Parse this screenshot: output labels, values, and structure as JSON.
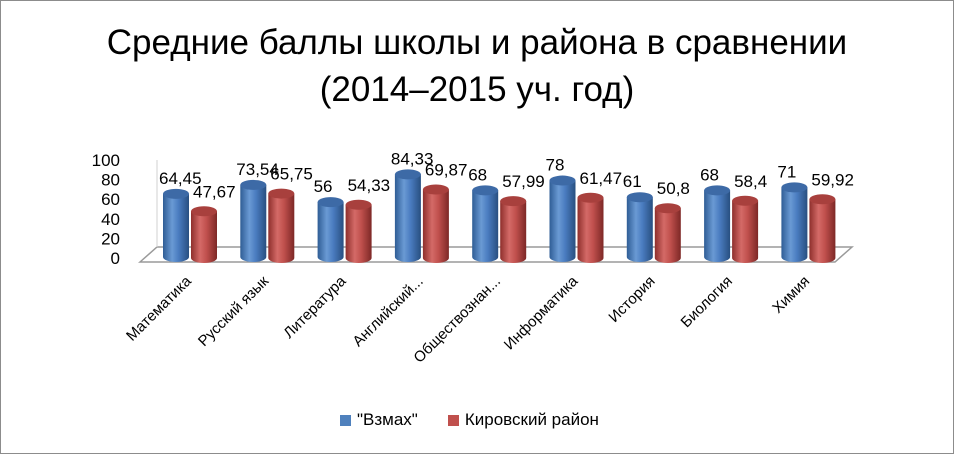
{
  "chart_data": {
    "type": "bar",
    "style": "3d-cylinder",
    "title": "Средние баллы школы и района в сравнении (2014–2015 уч. год)",
    "title_lines": [
      "Средние баллы школы и района в сравнении",
      "(2014–2015 уч. год)"
    ],
    "categories": [
      "Математика",
      "Русский язык",
      "Литература",
      "Английский...",
      "Обществознан...",
      "Информатика",
      "История",
      "Биология",
      "Химия"
    ],
    "series": [
      {
        "name": "\"Взмах\"",
        "color": "#4F81BD",
        "values": [
          64.45,
          73.54,
          56,
          84.33,
          68,
          78,
          61,
          68,
          71
        ],
        "labels": [
          "64,45",
          "73,54",
          "56",
          "84,33",
          "68",
          "78",
          "61",
          "68",
          "71"
        ]
      },
      {
        "name": "Кировский район",
        "color": "#C0504D",
        "values": [
          47.67,
          65.75,
          54.33,
          69.87,
          57.99,
          61.47,
          50.8,
          58.4,
          59.92
        ],
        "labels": [
          "47,67",
          "65,75",
          "54,33",
          "69,87",
          "57,99",
          "61,47",
          "50,8",
          "58,4",
          "59,92"
        ]
      }
    ],
    "yticks": [
      0,
      20,
      40,
      60,
      80,
      100
    ],
    "ylim": [
      0,
      100
    ],
    "xlabel": "",
    "ylabel": "",
    "grid": false,
    "legend_position": "bottom"
  },
  "legend": {
    "items": [
      {
        "label": "\"Взмах\"",
        "color": "#4F81BD"
      },
      {
        "label": "Кировский район",
        "color": "#C0504D"
      }
    ]
  }
}
